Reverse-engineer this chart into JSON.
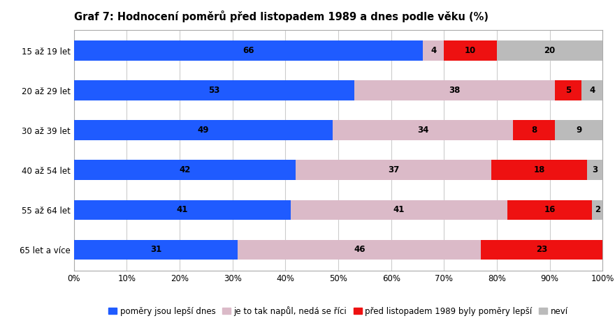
{
  "title": "Graf 7: Hodnocení poměrů před listopadem 1989 a dnes podle věku (%)",
  "categories": [
    "15 až 19 let",
    "20 až 29 let",
    "30 až 39 let",
    "40 až 54 let",
    "55 až 64 let",
    "65 let a více"
  ],
  "series": [
    {
      "label": "poměry jsou lepší dnes",
      "color": "#1F5BFF",
      "values": [
        66,
        53,
        49,
        42,
        41,
        31
      ]
    },
    {
      "label": "je to tak napůl, nedá se říci",
      "color": "#DBBAC8",
      "values": [
        4,
        38,
        34,
        37,
        41,
        46
      ]
    },
    {
      "label": "před listopadem 1989 byly poměry lepší",
      "color": "#EE1111",
      "values": [
        10,
        5,
        8,
        18,
        16,
        23
      ]
    },
    {
      "label": "neví",
      "color": "#BBBBBB",
      "values": [
        20,
        4,
        9,
        3,
        2,
        0
      ]
    }
  ],
  "xlim": [
    0,
    100
  ],
  "xticks": [
    0,
    10,
    20,
    30,
    40,
    50,
    60,
    70,
    80,
    90,
    100
  ],
  "xtick_labels": [
    "0%",
    "10%",
    "20%",
    "30%",
    "40%",
    "50%",
    "60%",
    "70%",
    "80%",
    "90%",
    "100%"
  ],
  "background_color": "#FFFFFF",
  "plot_background_color": "#FFFFFF",
  "title_fontsize": 10.5,
  "tick_fontsize": 8.5,
  "legend_fontsize": 8.5,
  "bar_height": 0.5,
  "value_fontsize": 8.5,
  "grid_color": "#CCCCCC",
  "border_color": "#AAAAAA"
}
